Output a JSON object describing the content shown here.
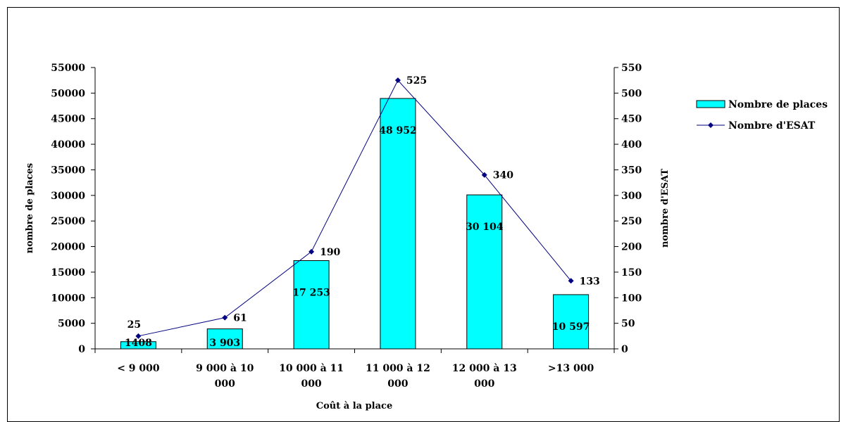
{
  "chart_data": {
    "type": "bar",
    "categories": [
      [
        "< 9 000"
      ],
      [
        "9 000 à 10",
        "000"
      ],
      [
        "10 000 à 11",
        "000"
      ],
      [
        "11 000 à 12",
        "000"
      ],
      [
        "12 000 à 13",
        "000"
      ],
      [
        ">13 000"
      ]
    ],
    "series": [
      {
        "name": "Nombre de places",
        "type": "bar",
        "axis": "left",
        "color": "#00FFFF",
        "values": [
          1408,
          3903,
          17253,
          48952,
          30104,
          10597
        ],
        "labels": [
          "1408",
          "3 903",
          "17 253",
          "48 952",
          "30 104",
          "10 597"
        ]
      },
      {
        "name": "Nombre d'ESAT",
        "type": "line",
        "axis": "right",
        "color": "#000080",
        "values": [
          25,
          61,
          190,
          525,
          340,
          133
        ],
        "labels": [
          "25",
          "61",
          "190",
          "525",
          "340",
          "133"
        ]
      }
    ],
    "xlabel": "Coût à la place",
    "ylabel": "nombre de places",
    "y2label": "nombre d'ESAT",
    "ylim": [
      0,
      55000
    ],
    "y2lim": [
      0,
      550
    ],
    "yticks": [
      "0",
      "5000",
      "10000",
      "15000",
      "20000",
      "25000",
      "30000",
      "35000",
      "40000",
      "45000",
      "50000",
      "55000"
    ],
    "y2ticks": [
      "0",
      "50",
      "100",
      "150",
      "200",
      "250",
      "300",
      "350",
      "400",
      "450",
      "500",
      "550"
    ],
    "grid": false,
    "legend_position": "right"
  }
}
